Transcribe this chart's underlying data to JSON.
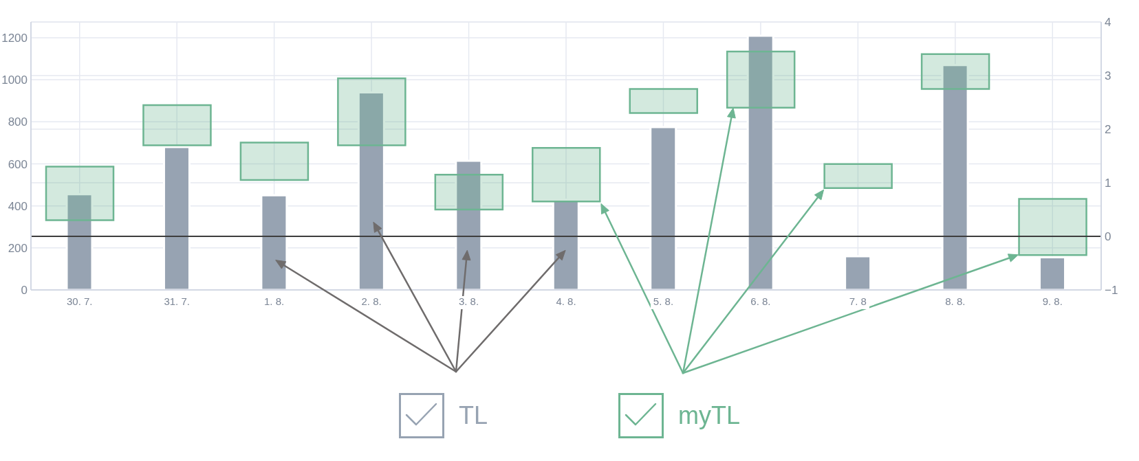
{
  "chart_data": {
    "type": "bar",
    "categories": [
      "30. 7.",
      "31. 7.",
      "1. 8.",
      "2. 8.",
      "3. 8.",
      "4. 8.",
      "5. 8.",
      "6. 8.",
      "7. 8",
      "8. 8.",
      "9. 8."
    ],
    "series": [
      {
        "name": "TL",
        "color": "#97a3b2",
        "values": [
          455,
          680,
          450,
          940,
          615,
          430,
          775,
          1210,
          160,
          1070,
          155
        ]
      },
      {
        "name": "myTL",
        "color": "#6db592",
        "axis": "y2",
        "base": [
          0.3,
          1.7,
          1.05,
          1.7,
          0.5,
          0.65,
          2.3,
          2.4,
          0.9,
          2.75,
          -0.35
        ],
        "values": [
          1.0,
          0.75,
          0.7,
          1.25,
          0.65,
          1.0,
          0.45,
          1.05,
          0.45,
          0.65,
          1.05
        ]
      }
    ],
    "ylim": [
      0,
      1275
    ],
    "yticks": [
      0,
      200,
      400,
      600,
      800,
      1000,
      1200
    ],
    "y2lim": [
      -1,
      4
    ],
    "y2ticks": [
      {
        "value": -1,
        "label": "−1"
      },
      0,
      1,
      2,
      3,
      4
    ],
    "ref_lines": [
      {
        "axis": "y2",
        "value": 0,
        "color": "#3d3d3d"
      }
    ],
    "grid": true,
    "legend": "bottom"
  }
}
